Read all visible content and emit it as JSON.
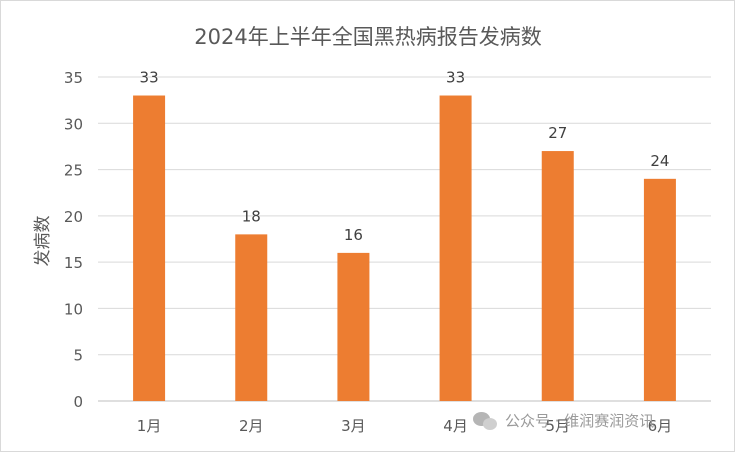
{
  "chart_data": {
    "type": "bar",
    "title": "2024年上半年全国黑热病报告发病数",
    "xlabel": "",
    "ylabel": "发病数",
    "categories": [
      "1月",
      "2月",
      "3月",
      "4月",
      "5月",
      "6月"
    ],
    "values": [
      33,
      18,
      16,
      33,
      27,
      24
    ],
    "ylim": [
      0,
      35
    ],
    "yticks": [
      0,
      5,
      10,
      15,
      20,
      25,
      30,
      35
    ],
    "grid": true,
    "legend": "none",
    "bar_color": "#ed7d31"
  },
  "watermark": {
    "text": "公众号 · 维润赛润资讯",
    "icon": "wechat-icon"
  }
}
